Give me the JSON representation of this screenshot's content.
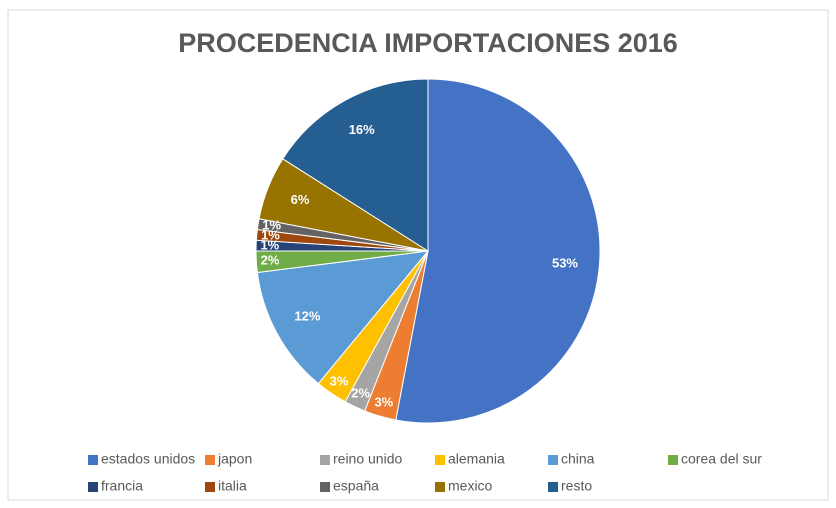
{
  "chart_data": {
    "type": "pie",
    "title": "PROCEDENCIA IMPORTACIONES 2016",
    "categories": [
      "estados unidos",
      "japon",
      "reino unido",
      "alemania",
      "china",
      "corea del sur",
      "francia",
      "italia",
      "españa",
      "mexico",
      "resto"
    ],
    "values": [
      53,
      3,
      2,
      3,
      12,
      2,
      1,
      1,
      1,
      6,
      16
    ],
    "value_labels": [
      "53%",
      "3%",
      "2%",
      "3%",
      "12%",
      "2%",
      "1%",
      "1%",
      "1%",
      "6%",
      "16%"
    ],
    "colors": [
      "#4472c4",
      "#ed7d31",
      "#a5a5a5",
      "#ffc000",
      "#5b9bd5",
      "#70ad47",
      "#264478",
      "#9e480e",
      "#636363",
      "#997300",
      "#255e91"
    ],
    "legend": "bottom"
  }
}
